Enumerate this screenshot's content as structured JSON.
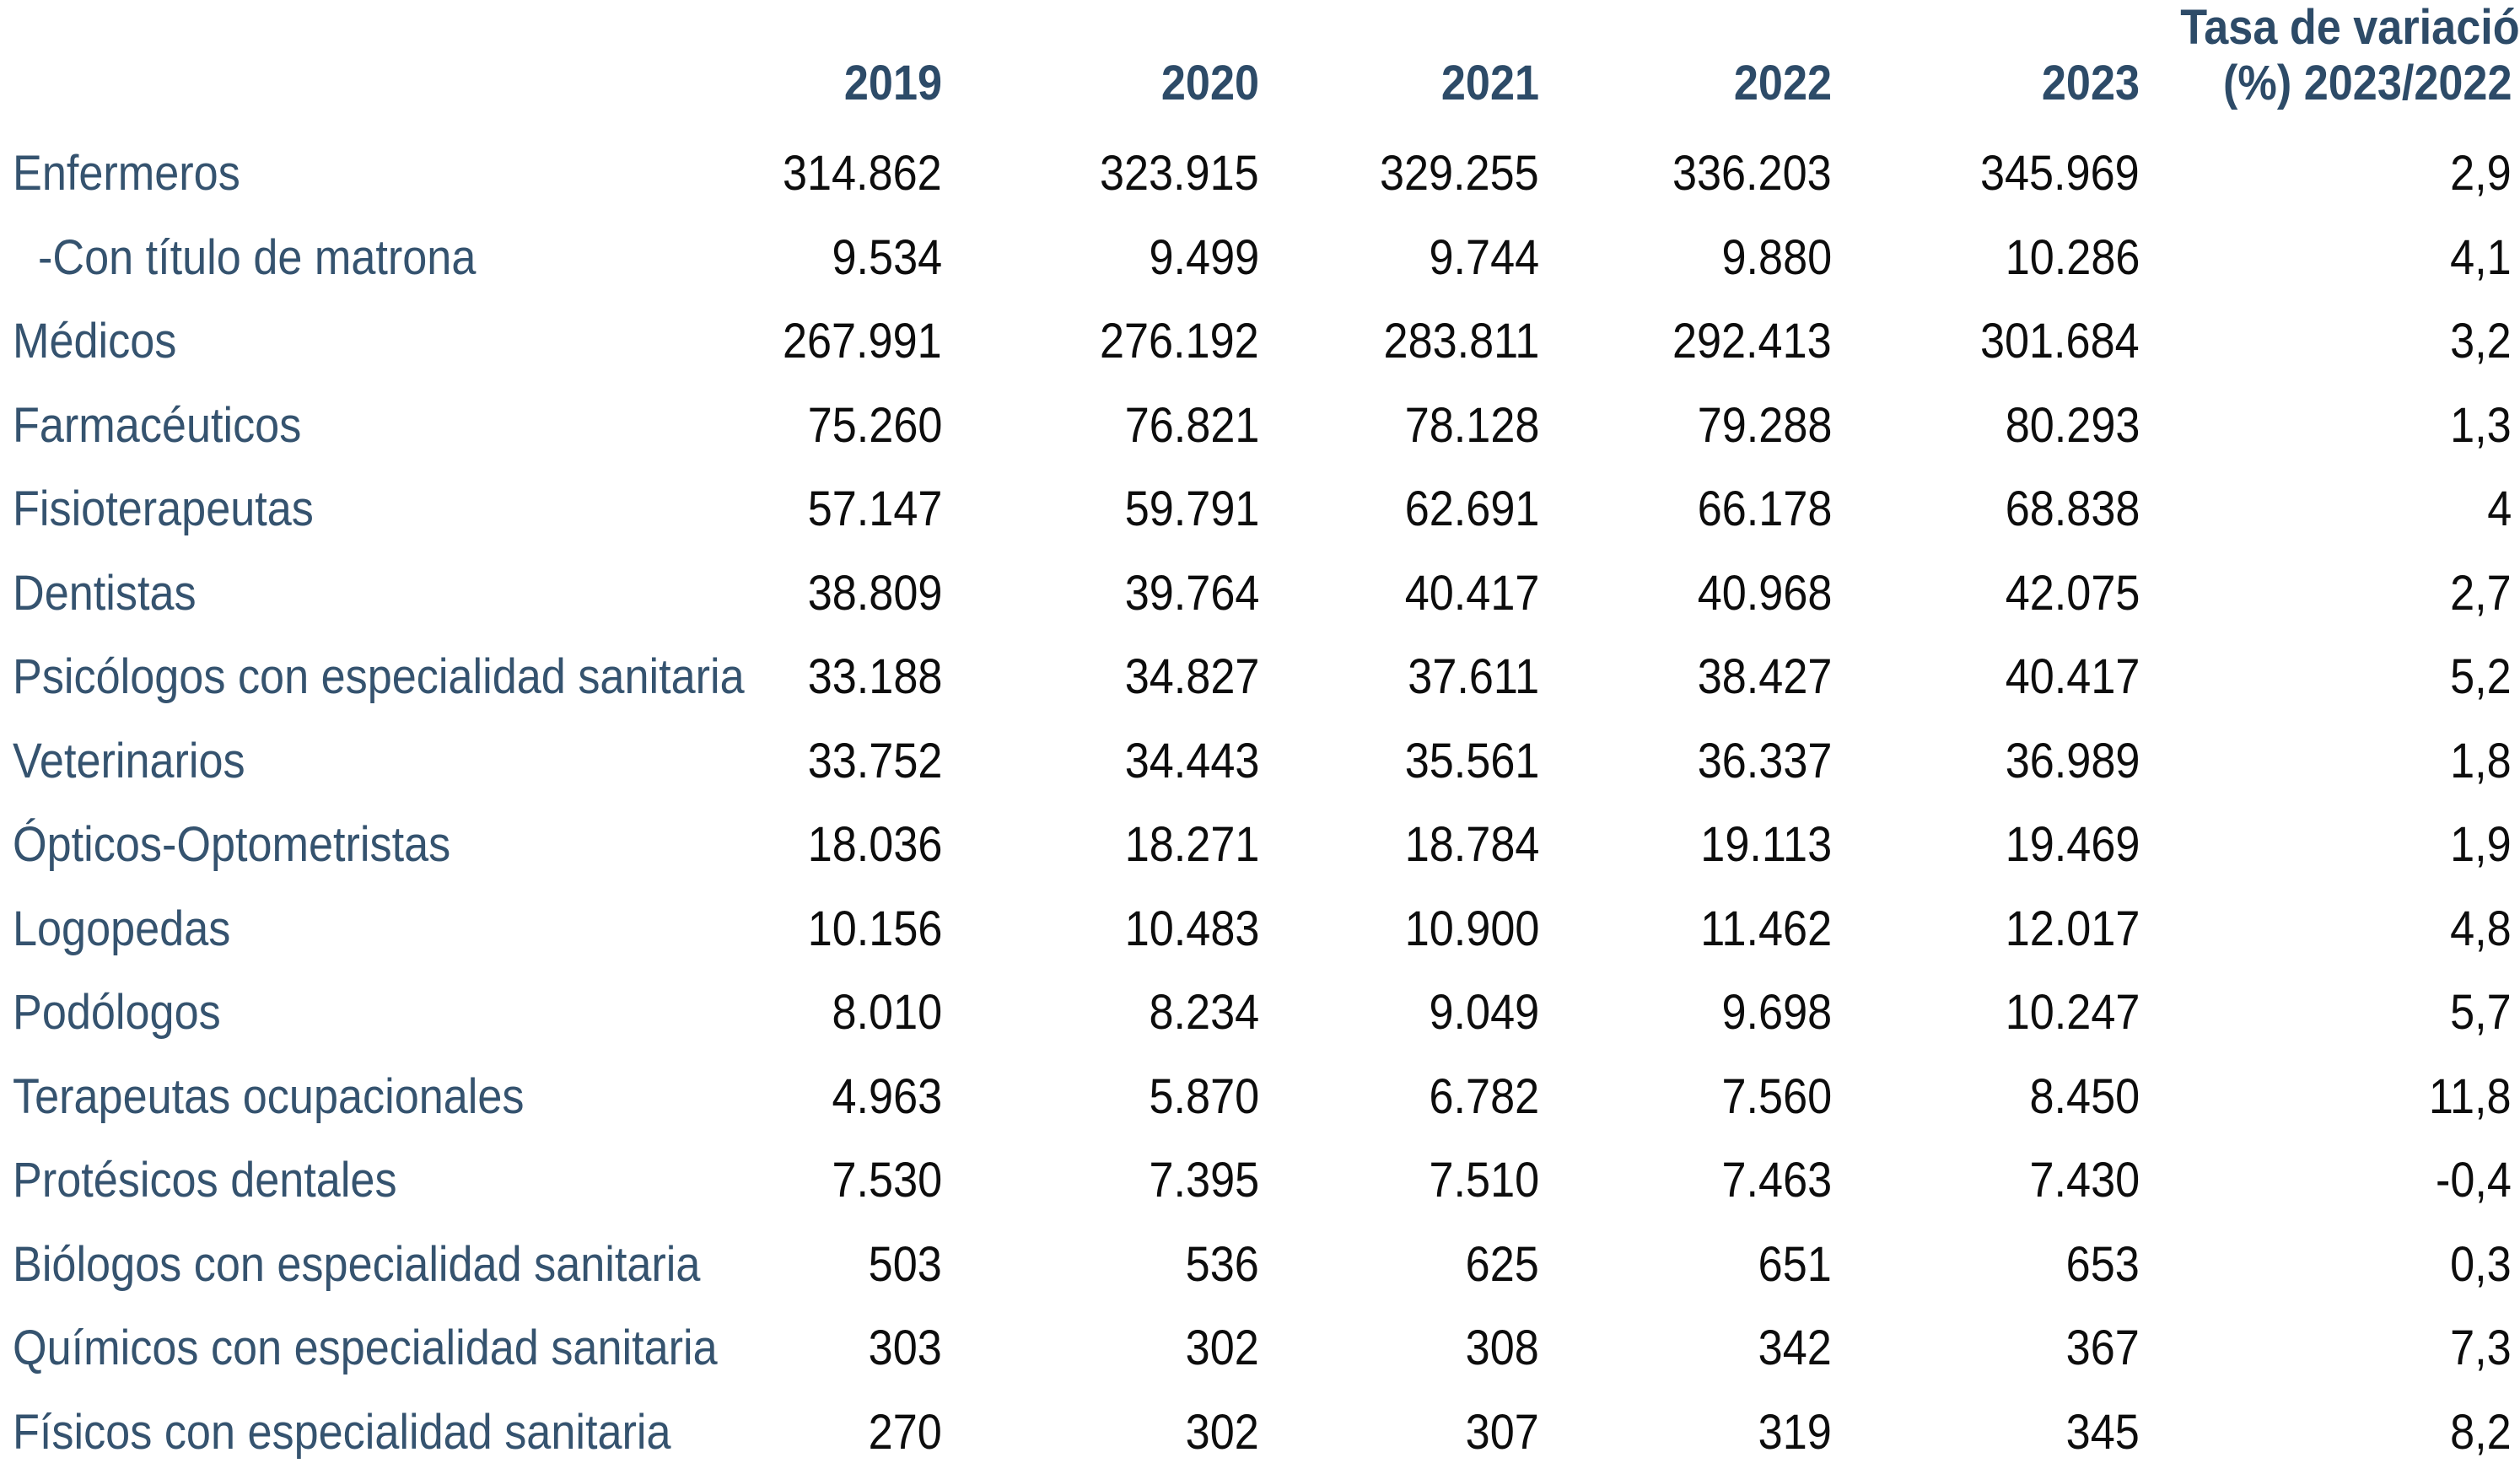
{
  "table": {
    "header": {
      "years": [
        "2019",
        "2020",
        "2021",
        "2022",
        "2023"
      ],
      "variation_line1": "Tasa de variación",
      "variation_line2": "(%) 2023/2022"
    },
    "column_keys": [
      "2019",
      "2020",
      "2021",
      "2022",
      "2023",
      "variation"
    ],
    "rows": [
      {
        "label": "Enfermeros",
        "indent": false,
        "values": [
          "314.862",
          "323.915",
          "329.255",
          "336.203",
          "345.969",
          "2,9"
        ]
      },
      {
        "label": "-Con título de matrona",
        "indent": true,
        "values": [
          "9.534",
          "9.499",
          "9.744",
          "9.880",
          "10.286",
          "4,1"
        ]
      },
      {
        "label": "Médicos",
        "indent": false,
        "values": [
          "267.991",
          "276.192",
          "283.811",
          "292.413",
          "301.684",
          "3,2"
        ]
      },
      {
        "label": "Farmacéuticos",
        "indent": false,
        "values": [
          "75.260",
          "76.821",
          "78.128",
          "79.288",
          "80.293",
          "1,3"
        ]
      },
      {
        "label": "Fisioterapeutas",
        "indent": false,
        "values": [
          "57.147",
          "59.791",
          "62.691",
          "66.178",
          "68.838",
          "4"
        ]
      },
      {
        "label": "Dentistas",
        "indent": false,
        "values": [
          "38.809",
          "39.764",
          "40.417",
          "40.968",
          "42.075",
          "2,7"
        ]
      },
      {
        "label": "Psicólogos con especialidad sanitaria",
        "indent": false,
        "values": [
          "33.188",
          "34.827",
          "37.611",
          "38.427",
          "40.417",
          "5,2"
        ]
      },
      {
        "label": "Veterinarios",
        "indent": false,
        "values": [
          "33.752",
          "34.443",
          "35.561",
          "36.337",
          "36.989",
          "1,8"
        ]
      },
      {
        "label": "Ópticos-Optometristas",
        "indent": false,
        "values": [
          "18.036",
          "18.271",
          "18.784",
          "19.113",
          "19.469",
          "1,9"
        ]
      },
      {
        "label": "Logopedas",
        "indent": false,
        "values": [
          "10.156",
          "10.483",
          "10.900",
          "11.462",
          "12.017",
          "4,8"
        ]
      },
      {
        "label": "Podólogos",
        "indent": false,
        "values": [
          "8.010",
          "8.234",
          "9.049",
          "9.698",
          "10.247",
          "5,7"
        ]
      },
      {
        "label": "Terapeutas ocupacionales",
        "indent": false,
        "values": [
          "4.963",
          "5.870",
          "6.782",
          "7.560",
          "8.450",
          "11,8"
        ]
      },
      {
        "label": "Protésicos dentales",
        "indent": false,
        "values": [
          "7.530",
          "7.395",
          "7.510",
          "7.463",
          "7.430",
          "-0,4"
        ]
      },
      {
        "label": "Biólogos con especialidad sanitaria",
        "indent": false,
        "values": [
          "503",
          "536",
          "625",
          "651",
          "653",
          "0,3"
        ]
      },
      {
        "label": "Químicos con especialidad sanitaria",
        "indent": false,
        "values": [
          "303",
          "302",
          "308",
          "342",
          "367",
          "7,3"
        ]
      },
      {
        "label": "Físicos con especialidad sanitaria",
        "indent": false,
        "values": [
          "270",
          "302",
          "307",
          "319",
          "345",
          "8,2"
        ]
      }
    ]
  },
  "colors": {
    "header_text": "#2d4b68",
    "label_text": "#35536f",
    "number_text": "#0d0d0d",
    "background": "#ffffff"
  }
}
